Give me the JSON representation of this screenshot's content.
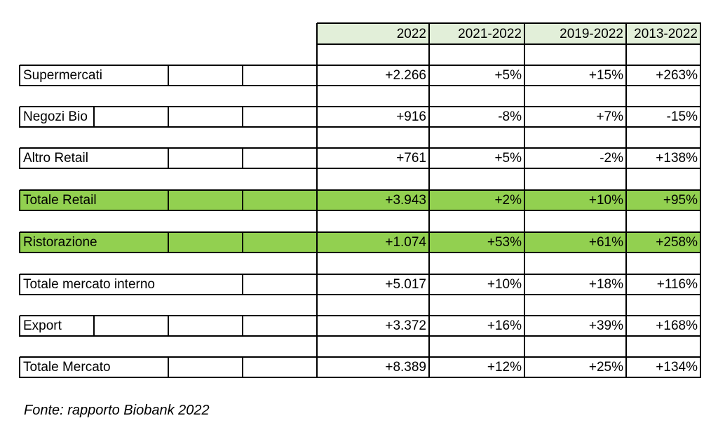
{
  "headers": [
    "2022",
    "2021-2022",
    "2019-2022",
    "2013-2022"
  ],
  "rows": [
    {
      "label": "Supermercati",
      "values": [
        "+2.266",
        "+5%",
        "+15%",
        "+263%"
      ],
      "highlight": false
    },
    {
      "label": "Negozi Bio",
      "values": [
        "+916",
        "-8%",
        "+7%",
        "-15%"
      ],
      "highlight": false
    },
    {
      "label": "Altro Retail",
      "values": [
        "+761",
        "+5%",
        "-2%",
        "+138%"
      ],
      "highlight": false
    },
    {
      "label": "Totale Retail",
      "values": [
        "+3.943",
        "+2%",
        "+10%",
        "+95%"
      ],
      "highlight": true
    },
    {
      "label": "Ristorazione",
      "values": [
        "+1.074",
        "+53%",
        "+61%",
        "+258%"
      ],
      "highlight": true
    },
    {
      "label": "Totale mercato interno",
      "values": [
        "+5.017",
        "+10%",
        "+18%",
        "+116%"
      ],
      "highlight": false
    },
    {
      "label": "Export",
      "values": [
        "+3.372",
        "+16%",
        "+39%",
        "+168%"
      ],
      "highlight": false
    },
    {
      "label": "Totale Mercato",
      "values": [
        "+8.389",
        "+12%",
        "+25%",
        "+134%"
      ],
      "highlight": false
    }
  ],
  "source": "Fonte: rapporto Biobank 2022",
  "colors": {
    "header_fill": "#e2efd9",
    "highlight_fill": "#92d050",
    "grid": "#000000"
  }
}
